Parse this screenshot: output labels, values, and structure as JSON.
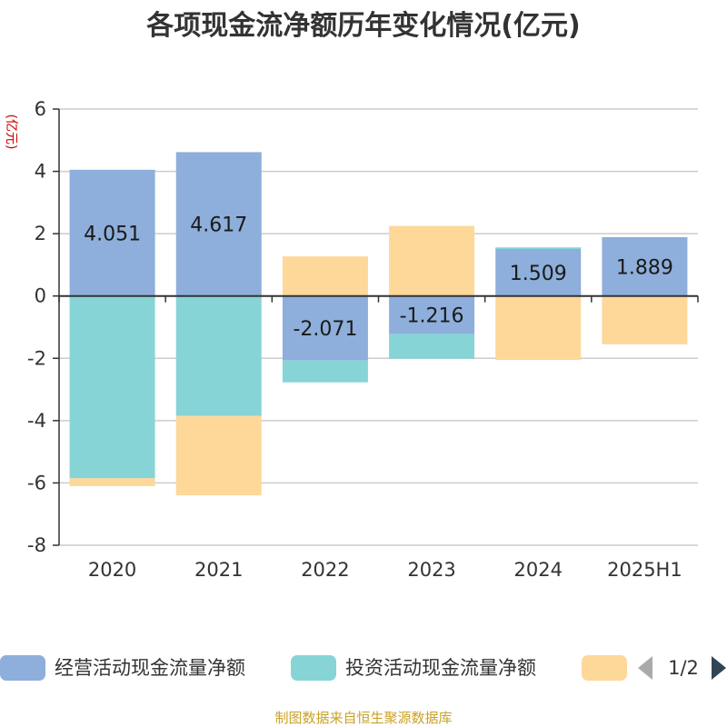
{
  "title": "各项现金流净额历年变化情况(亿元)",
  "source": "制图数据来自恒生聚源数据库",
  "legend": {
    "pager": "1/2"
  },
  "chart_data": {
    "type": "bar",
    "stacked": true,
    "categories": [
      "2020",
      "2021",
      "2022",
      "2023",
      "2024",
      "2025H1"
    ],
    "ylim": [
      -8,
      6
    ],
    "yticks": [
      6,
      4,
      2,
      0,
      -2,
      -4,
      -6,
      -8
    ],
    "ylabel": "(亿元)",
    "grid": true,
    "legend_position": "bottom",
    "series": [
      {
        "name": "经营活动现金流量净额",
        "color": "#8eaedb",
        "values": [
          4.051,
          4.617,
          -2.071,
          -1.216,
          1.509,
          1.889
        ],
        "show_labels": true
      },
      {
        "name": "投资活动现金流量净额",
        "color": "#86d4d6",
        "values": [
          -5.85,
          -3.85,
          -0.7,
          -0.8,
          0.05,
          0
        ],
        "show_labels": false
      },
      {
        "name": "",
        "color": "#fdd899",
        "values": [
          -0.25,
          -2.55,
          1.27,
          2.25,
          -2.05,
          -1.55
        ],
        "show_labels": false
      }
    ]
  }
}
